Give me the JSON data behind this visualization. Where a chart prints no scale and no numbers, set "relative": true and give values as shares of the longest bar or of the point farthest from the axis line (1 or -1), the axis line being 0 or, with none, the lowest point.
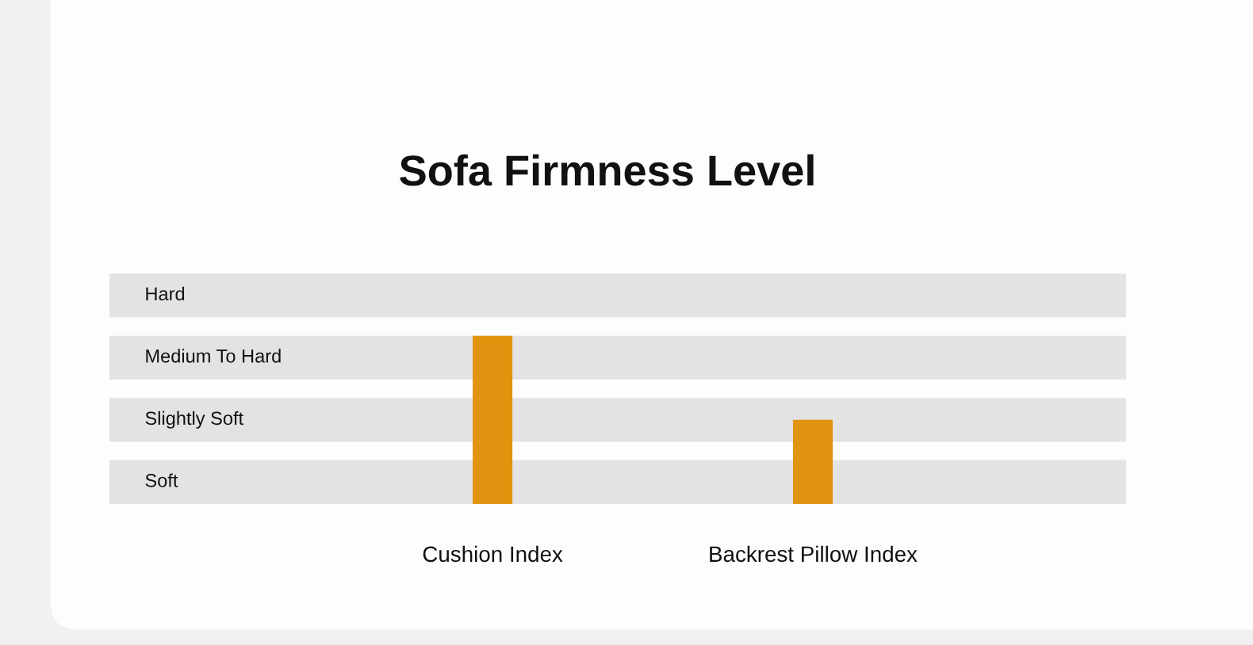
{
  "chart_data": {
    "type": "bar",
    "title": "Sofa Firmness Level",
    "categories": [
      "Cushion Index",
      "Backrest Pillow Index"
    ],
    "values": [
      1,
      0.5
    ],
    "relative": true,
    "color": "#e0940f",
    "bands": [
      {
        "axis": "y",
        "from": 0,
        "to": 0.26,
        "label": "Soft",
        "color": "#e3e3e3"
      },
      {
        "axis": "y",
        "from": 0.37,
        "to": 0.63,
        "label": "Slightly Soft",
        "color": "#e3e3e3"
      },
      {
        "axis": "y",
        "from": 0.74,
        "to": 1.0,
        "label": "Medium To Hard",
        "color": "#e3e3e3"
      },
      {
        "axis": "y",
        "from": 1.11,
        "to": 1.37,
        "label": "Hard",
        "color": "#e3e3e3"
      }
    ]
  }
}
